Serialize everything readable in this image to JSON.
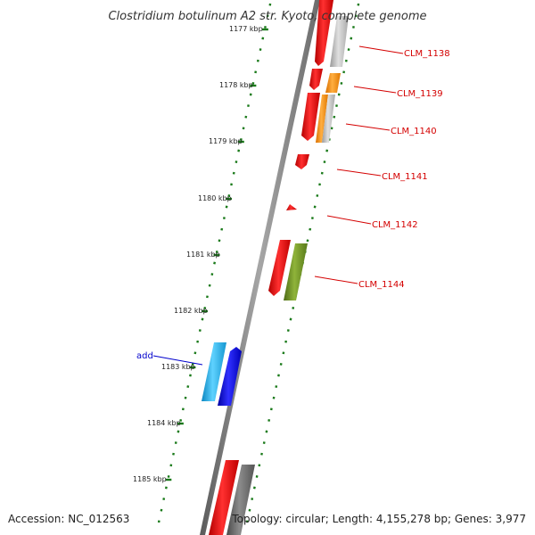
{
  "title": "Clostridium botulinum A2 str. Kyoto, complete genome",
  "footer": {
    "accession": "Accession: NC_012563",
    "summary": "Topology: circular; Length: 4,155,278 bp; Genes: 3,977"
  },
  "kbp_labels": [
    "1177 kbp",
    "1178 kbp",
    "1179 kbp",
    "1180 kbp",
    "1181 kbp",
    "1182 kbp",
    "1183 kbp",
    "1184 kbp",
    "1185 kbp"
  ],
  "gene_labels": [
    {
      "text": "CLM_1138",
      "color": "#d40000"
    },
    {
      "text": "CLM_1139",
      "color": "#d40000"
    },
    {
      "text": "CLM_1140",
      "color": "#d40000"
    },
    {
      "text": "CLM_1141",
      "color": "#d40000"
    },
    {
      "text": "CLM_1142",
      "color": "#d40000"
    },
    {
      "text": "CLM_1144",
      "color": "#d40000"
    },
    {
      "text": "add",
      "color": "#0000cc"
    }
  ],
  "colors": {
    "backbone": "#808080",
    "tick": "#1a7a1a",
    "red": "#ee0000",
    "orange": "#ff8c00",
    "grey": "#bdbdbd",
    "dark_grey": "#707070",
    "olive": "#6b8e23",
    "cyan": "#1ab0e8",
    "blue": "#0000dd"
  }
}
